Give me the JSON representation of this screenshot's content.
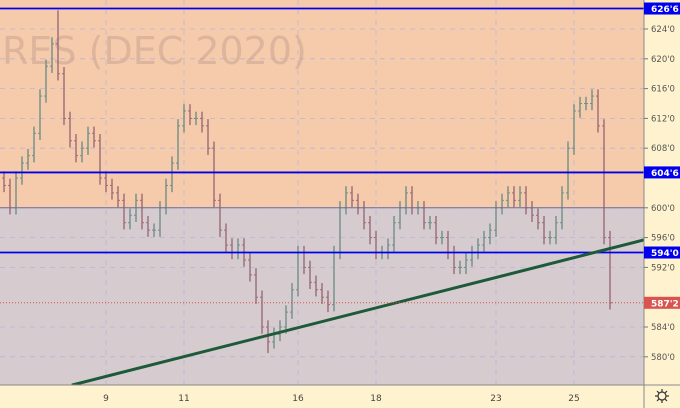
{
  "watermark": {
    "line1": "RES (DEC 2020)"
  },
  "colors": {
    "upper_zone": "#f6cbab",
    "lower_zone": "#d6cccf",
    "axis_bg": "#fff3cf",
    "level_line": "#0000ee",
    "trendline": "#1d5a3a",
    "last_price": "#d9534f",
    "bar": "#8a8aa0"
  },
  "chart_data": {
    "type": "ohlc",
    "title": "",
    "ylim": [
      577,
      627.5
    ],
    "grid": true,
    "y_ticks": [
      {
        "value": 580,
        "label": "580'0"
      },
      {
        "value": 584,
        "label": "584'0"
      },
      {
        "value": 592,
        "label": "592'0"
      },
      {
        "value": 596,
        "label": "596'0"
      },
      {
        "value": 600,
        "label": "600'0"
      },
      {
        "value": 608,
        "label": "608'0"
      },
      {
        "value": 612,
        "label": "612'0"
      },
      {
        "value": 616,
        "label": "616'0"
      },
      {
        "value": 620,
        "label": "620'0"
      },
      {
        "value": 624,
        "label": "624'0"
      }
    ],
    "date_ticks": [
      {
        "bar": 17,
        "label": "9"
      },
      {
        "bar": 30,
        "label": "11"
      },
      {
        "bar": 49,
        "label": "16"
      },
      {
        "bar": 62,
        "label": "18"
      },
      {
        "bar": 82,
        "label": "23"
      },
      {
        "bar": 95,
        "label": "25"
      }
    ],
    "levels": [
      {
        "value": 626.75,
        "label": "626'6"
      },
      {
        "value": 604.75,
        "label": "604'6"
      },
      {
        "value": 594.0,
        "label": "594'0"
      }
    ],
    "zone_split": 600,
    "last_price": {
      "value": 587.25,
      "label": "587'2"
    },
    "trendline": [
      {
        "bar": 11.3,
        "price": 576.2
      },
      {
        "bar": 106.7,
        "price": 595.7
      }
    ],
    "close": [
      603,
      600,
      604,
      606,
      607,
      610,
      615,
      619,
      622,
      618,
      612,
      609,
      607,
      608,
      610,
      609,
      604,
      603,
      602,
      601,
      598,
      599,
      601,
      598,
      597,
      597,
      600,
      603,
      606,
      611,
      613,
      612,
      612,
      611,
      608,
      601,
      597,
      595,
      594,
      595,
      593,
      591,
      588,
      584,
      582,
      583,
      584,
      586,
      589,
      594,
      592,
      590,
      589,
      588,
      587,
      594,
      600,
      602,
      601,
      600,
      598,
      596,
      594,
      594,
      595,
      598,
      600,
      602,
      600,
      600,
      598,
      598,
      596,
      596,
      594,
      592,
      592,
      593,
      594,
      595,
      596,
      597,
      600,
      601,
      602,
      601,
      602,
      600,
      599,
      598,
      596,
      596,
      598,
      602,
      608,
      613,
      614,
      614,
      615,
      611,
      596,
      587.25
    ],
    "extreme_highs": [
      {
        "bar": 9,
        "value": 626.5
      }
    ],
    "extreme_lows": [
      {
        "bar": 44,
        "value": 580.5
      },
      {
        "bar": 54,
        "value": 586
      }
    ]
  }
}
